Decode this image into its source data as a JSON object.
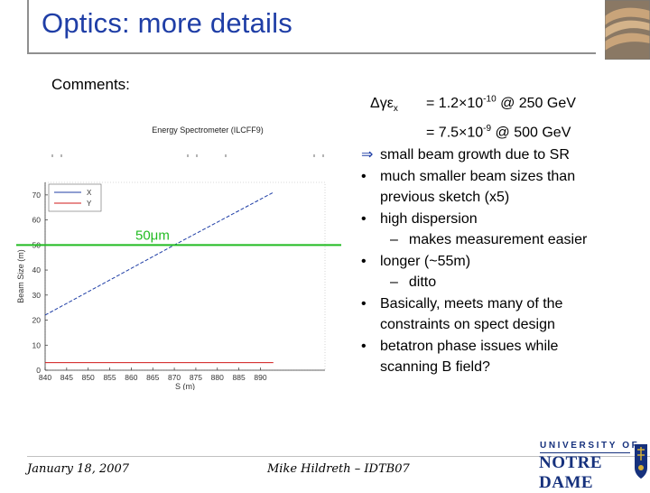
{
  "slide": {
    "title": "Optics: more details",
    "comments_label": "Comments:"
  },
  "emittance": {
    "symbol": "Δγε",
    "subscript": "x",
    "line1_prefix": "= 1.2×10",
    "line1_exp": "-10",
    "line1_suffix": " @ 250 GeV",
    "line2_prefix": "= 7.5×10",
    "line2_exp": "-9",
    "line2_suffix": " @ 500 GeV"
  },
  "bullets": [
    {
      "marker": "⇒",
      "lines": [
        "small beam growth due to SR"
      ]
    },
    {
      "marker": "•",
      "lines": [
        "much smaller beam sizes than",
        "previous sketch (x5)"
      ]
    },
    {
      "marker": "•",
      "lines": [
        "high dispersion"
      ],
      "sub": "makes measurement easier"
    },
    {
      "marker": "•",
      "lines": [
        "longer (~55m)"
      ],
      "sub": "ditto"
    },
    {
      "marker": "•",
      "lines": [
        "Basically, meets many of the",
        "constraints on spect design"
      ]
    },
    {
      "marker": "•",
      "lines": [
        "betatron phase issues while",
        "scanning B field?"
      ]
    }
  ],
  "chart_data": {
    "type": "line",
    "title": "Energy Spectrometer (ILCFF9)",
    "xlabel": "S (m)",
    "ylabel": "Beam Size (m)",
    "xlim": [
      840,
      905
    ],
    "ylim": [
      0,
      75
    ],
    "xticks": [
      "840",
      "845",
      "850",
      "855",
      "860",
      "865",
      "870",
      "875",
      "880",
      "885",
      "890"
    ],
    "yticks": [
      "0",
      "10",
      "20",
      "30",
      "40",
      "50",
      "60",
      "70"
    ],
    "legend": [
      "X",
      "Y"
    ],
    "legend_position": "top-left",
    "annotation": "50μm",
    "threshold": 50,
    "threshold_color": "#22bb22",
    "series": [
      {
        "name": "X",
        "color": "#1f3ea6",
        "x": [
          840,
          870,
          893
        ],
        "y": [
          22,
          50,
          71
        ]
      },
      {
        "name": "Y",
        "color": "#d01818",
        "x": [
          840,
          893
        ],
        "y": [
          3,
          3
        ]
      }
    ]
  },
  "footer": {
    "date": "January 18, 2007",
    "author": "Mike Hildreth – IDTB07"
  },
  "logo": {
    "university": "UNIVERSITY OF",
    "name": "NOTRE DAME"
  },
  "colors": {
    "title": "#1f3ea6",
    "threshold": "#22bb22"
  }
}
